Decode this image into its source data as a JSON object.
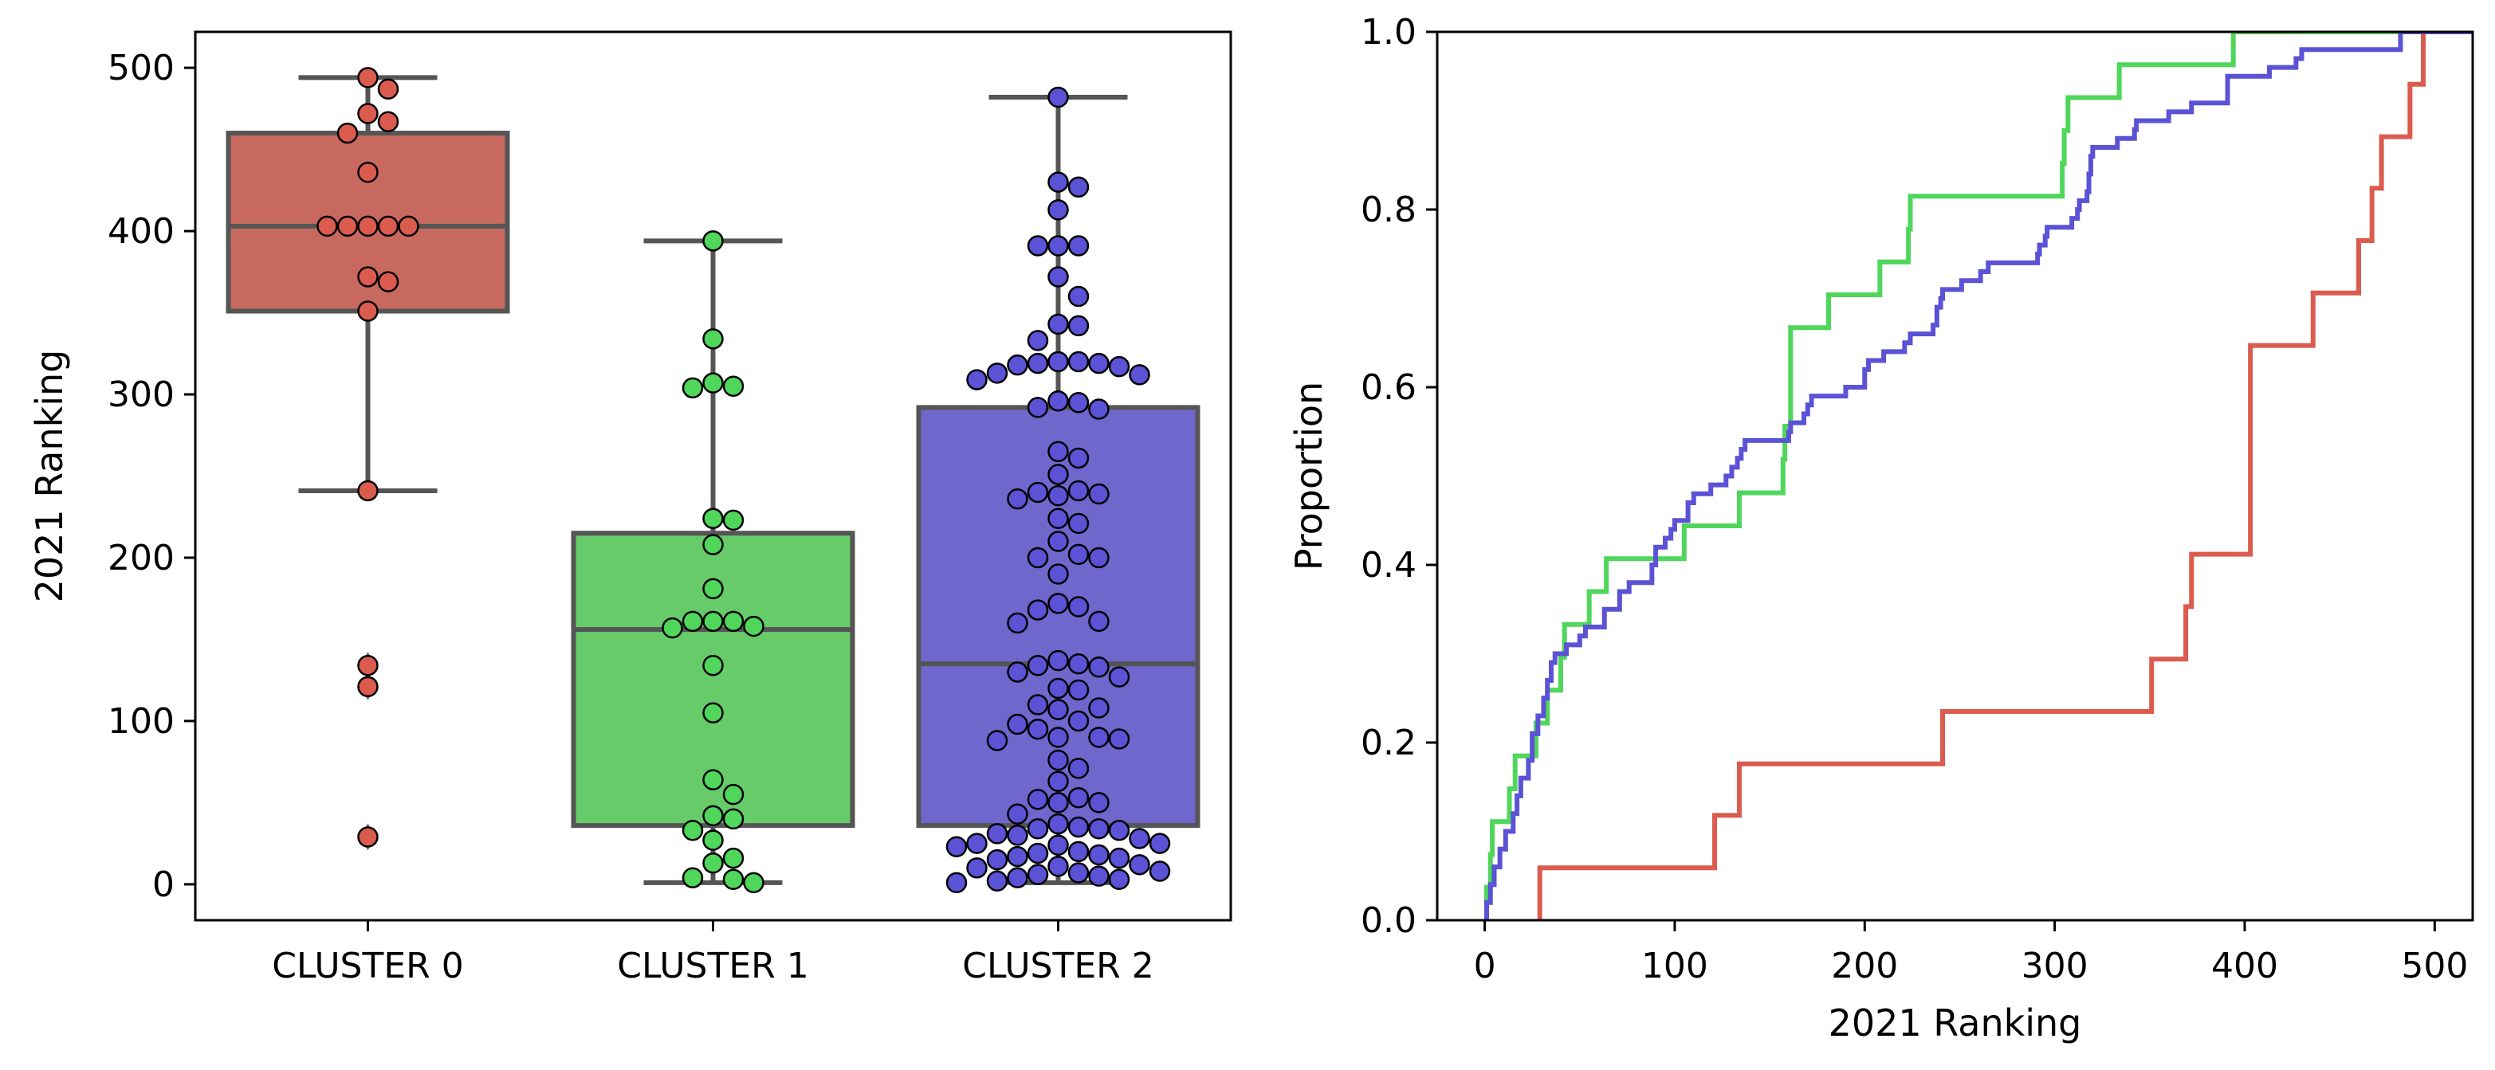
{
  "chart_data": [
    {
      "type": "box",
      "ylabel": "2021 Ranking",
      "xlabel": "",
      "ylim": [
        -22,
        522
      ],
      "yticks": [
        0,
        100,
        200,
        300,
        400,
        500
      ],
      "categories": [
        "CLUSTER 0",
        "CLUSTER 1",
        "CLUSTER 2"
      ],
      "colors": [
        "#c8695f",
        "#67cb6a",
        "#6f67cc"
      ],
      "point_colors": [
        "#db5b4f",
        "#4fd65b",
        "#5b52d6"
      ],
      "boxes": [
        {
          "q1": 351,
          "median": 403,
          "q3": 460,
          "whisker_low": 241,
          "whisker_high": 494,
          "outliers": [
            134,
            121,
            29
          ]
        },
        {
          "q1": 36,
          "median": 156,
          "q3": 215,
          "whisker_low": 1,
          "whisker_high": 394,
          "outliers": []
        },
        {
          "q1": 36,
          "median": 135,
          "q3": 292,
          "whisker_low": 1,
          "whisker_high": 482,
          "outliers": []
        }
      ],
      "points": [
        [
          494,
          487,
          472,
          467,
          460,
          436,
          403,
          403,
          403,
          403,
          403,
          372,
          369,
          351,
          241,
          134,
          121,
          29
        ],
        [
          394,
          334,
          305,
          304,
          307,
          224,
          223,
          208,
          181,
          161,
          158,
          157,
          161,
          161,
          134,
          105,
          64,
          55,
          42,
          40,
          33,
          27,
          16,
          13,
          3,
          1,
          4
        ],
        [
          482,
          430,
          427,
          413,
          391,
          391,
          391,
          372,
          360,
          342,
          343,
          333,
          320,
          319,
          317,
          312,
          309,
          313,
          318,
          319,
          320,
          296,
          292,
          291,
          295,
          265,
          261,
          251,
          238,
          240,
          241,
          239,
          236,
          224,
          221,
          210,
          200,
          202,
          200,
          190,
          172,
          168,
          170,
          160,
          161,
          135,
          133,
          127,
          130,
          134,
          137,
          119,
          120,
          108,
          107,
          110,
          100,
          98,
          95,
          90,
          89,
          90,
          88,
          76,
          71,
          63,
          53,
          50,
          50,
          52,
          43,
          37,
          35,
          34,
          33,
          34,
          31,
          30,
          28,
          25,
          24,
          25,
          23,
          20,
          19,
          18,
          17,
          16,
          15,
          12,
          11,
          10,
          8,
          7,
          6,
          5,
          4,
          3,
          2,
          1
        ]
      ]
    },
    {
      "type": "line",
      "xlabel": "2021 Ranking",
      "ylabel": "Proportion",
      "xlim": [
        -25,
        520
      ],
      "ylim": [
        0,
        1.0
      ],
      "xticks": [
        0,
        100,
        200,
        300,
        400,
        500
      ],
      "yticks": [
        0.0,
        0.2,
        0.4,
        0.6,
        0.8,
        1.0
      ],
      "series": [
        {
          "color": "#db5b4f",
          "x": [
            29,
            121,
            134,
            241,
            351,
            369,
            372,
            403,
            436,
            460,
            467,
            472,
            487,
            494
          ],
          "y": [
            0.059,
            0.118,
            0.176,
            0.235,
            0.294,
            0.353,
            0.412,
            0.647,
            0.706,
            0.765,
            0.824,
            0.882,
            0.941,
            1.0
          ]
        },
        {
          "color": "#4fd65b",
          "x": [
            1,
            3,
            4,
            13,
            16,
            27,
            33,
            40,
            42,
            55,
            64,
            105,
            134,
            157,
            158,
            161,
            181,
            208,
            223,
            224,
            304,
            305,
            307,
            334,
            394
          ],
          "y": [
            0.037,
            0.074,
            0.111,
            0.148,
            0.185,
            0.222,
            0.259,
            0.296,
            0.333,
            0.37,
            0.407,
            0.444,
            0.481,
            0.519,
            0.556,
            0.667,
            0.704,
            0.741,
            0.778,
            0.815,
            0.852,
            0.889,
            0.926,
            0.963,
            1.0
          ]
        },
        {
          "color": "#5b52d6",
          "x": [
            1,
            3,
            5,
            8,
            11,
            15,
            17,
            19,
            23,
            25,
            28,
            31,
            33,
            35,
            37,
            43,
            50,
            53,
            63,
            71,
            76,
            88,
            90,
            95,
            98,
            100,
            107,
            110,
            119,
            127,
            130,
            133,
            135,
            137,
            160,
            161,
            168,
            170,
            172,
            190,
            200,
            202,
            210,
            221,
            224,
            236,
            238,
            240,
            241,
            251,
            261,
            265,
            291,
            292,
            295,
            296,
            309,
            312,
            313,
            317,
            318,
            319,
            320,
            333,
            342,
            343,
            360,
            372,
            391,
            413,
            427,
            430,
            482
          ],
          "y": [
            0.02,
            0.04,
            0.06,
            0.08,
            0.1,
            0.12,
            0.14,
            0.16,
            0.18,
            0.21,
            0.23,
            0.25,
            0.27,
            0.29,
            0.3,
            0.31,
            0.32,
            0.33,
            0.35,
            0.37,
            0.38,
            0.4,
            0.42,
            0.43,
            0.44,
            0.45,
            0.47,
            0.48,
            0.49,
            0.5,
            0.51,
            0.52,
            0.53,
            0.54,
            0.55,
            0.56,
            0.57,
            0.58,
            0.59,
            0.6,
            0.62,
            0.63,
            0.64,
            0.65,
            0.66,
            0.67,
            0.69,
            0.7,
            0.71,
            0.72,
            0.73,
            0.74,
            0.75,
            0.76,
            0.77,
            0.78,
            0.79,
            0.8,
            0.81,
            0.82,
            0.84,
            0.86,
            0.87,
            0.88,
            0.89,
            0.9,
            0.91,
            0.92,
            0.95,
            0.96,
            0.97,
            0.98,
            1.0
          ]
        }
      ]
    }
  ]
}
